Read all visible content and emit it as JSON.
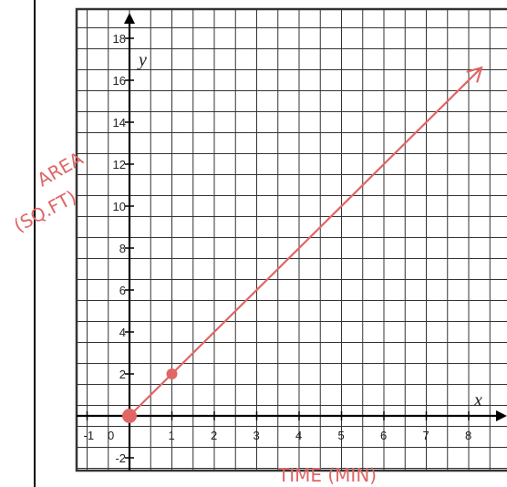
{
  "chart_data": {
    "type": "line",
    "x_axis_letter": "x",
    "y_axis_letter": "y",
    "xlim": [
      -1,
      9
    ],
    "ylim": [
      -2,
      18
    ],
    "x_ticks": [
      -1,
      0,
      1,
      2,
      3,
      4,
      5,
      6,
      7,
      8
    ],
    "y_ticks": [
      -2,
      2,
      4,
      6,
      8,
      10,
      12,
      14,
      16,
      18
    ],
    "annotations": {
      "ylabel_line1": "AREA",
      "ylabel_line2": "(SQ.FT)",
      "xlabel": "TIME (MIN)"
    },
    "line": {
      "slope": 2,
      "intercept": 0,
      "x_start": 0,
      "x_end": 8.3
    },
    "points": [
      {
        "x": 0,
        "y": 0
      },
      {
        "x": 1,
        "y": 2
      }
    ],
    "grid": true,
    "colors": {
      "line": "#e06666",
      "grid": "#333333",
      "axis": "#000000"
    }
  }
}
